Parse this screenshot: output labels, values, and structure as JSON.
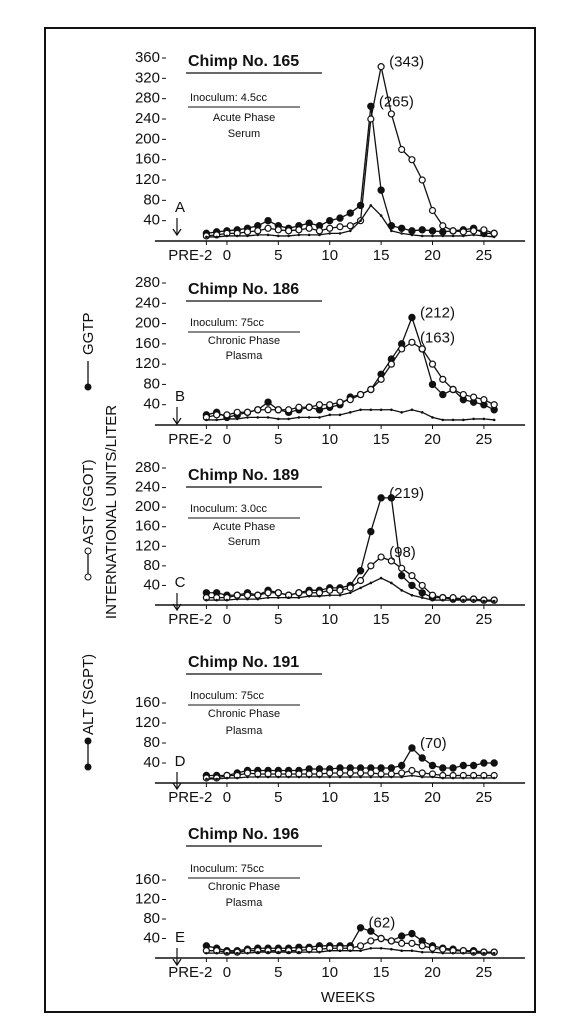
{
  "series_names": [
    "ALT (SGPT)",
    "AST (SGOT)",
    "GGTP"
  ],
  "y_label": "INTERNATIONAL UNITS/LITER",
  "x_label": "WEEKS",
  "chart_data": [
    {
      "type": "line",
      "title": "Chimp No. 165",
      "inoculum": "Inoculum:  4.5cc",
      "phase": "Acute Phase",
      "sample": "Serum",
      "panel": "A",
      "x": [
        -2,
        -1,
        0,
        1,
        2,
        3,
        4,
        5,
        6,
        7,
        8,
        9,
        10,
        11,
        12,
        13,
        14,
        15,
        16,
        17,
        18,
        19,
        20,
        21,
        22,
        23,
        24,
        25,
        26
      ],
      "series": [
        {
          "color": "#111111",
          "marker": "filled",
          "values": [
            15,
            18,
            20,
            22,
            25,
            30,
            40,
            30,
            25,
            30,
            35,
            30,
            40,
            45,
            55,
            70,
            265,
            100,
            30,
            25,
            20,
            22,
            20,
            18,
            20,
            22,
            25,
            15,
            15
          ]
        },
        {
          "color": "#111111",
          "marker": "open",
          "values": [
            10,
            12,
            15,
            15,
            18,
            20,
            25,
            22,
            20,
            22,
            25,
            20,
            25,
            28,
            30,
            40,
            240,
            343,
            250,
            180,
            160,
            120,
            60,
            30,
            20,
            18,
            20,
            22,
            15
          ]
        },
        {
          "color": "#111111",
          "marker": "none",
          "values": [
            8,
            8,
            10,
            10,
            10,
            12,
            12,
            10,
            10,
            12,
            12,
            12,
            15,
            15,
            20,
            40,
            70,
            50,
            20,
            15,
            12,
            10,
            10,
            10,
            10,
            10,
            12,
            10,
            8
          ]
        }
      ],
      "peak_labels": [
        "(265)",
        "(343)",
        null
      ],
      "xlim": [
        -7,
        29
      ],
      "ylim": [
        0,
        360
      ],
      "xticks": [
        {
          "value": -2,
          "label": "PRE-2"
        },
        0,
        5,
        10,
        15,
        20,
        25
      ],
      "yticks": [
        40,
        80,
        120,
        160,
        200,
        240,
        280,
        320,
        360
      ]
    },
    {
      "type": "line",
      "title": "Chimp No. 186",
      "inoculum": "Inoculum:  75cc",
      "phase": "Chronic Phase",
      "sample": "Plasma",
      "panel": "B",
      "x": [
        -2,
        -1,
        0,
        1,
        2,
        3,
        4,
        5,
        6,
        7,
        8,
        9,
        10,
        11,
        12,
        13,
        14,
        15,
        16,
        17,
        18,
        19,
        20,
        21,
        22,
        23,
        24,
        25,
        26
      ],
      "series": [
        {
          "color": "#111111",
          "marker": "filled",
          "values": [
            20,
            25,
            15,
            20,
            25,
            30,
            45,
            30,
            25,
            30,
            35,
            30,
            35,
            40,
            55,
            60,
            70,
            100,
            130,
            160,
            212,
            150,
            80,
            60,
            70,
            50,
            45,
            40,
            30
          ]
        },
        {
          "color": "#111111",
          "marker": "open",
          "values": [
            15,
            20,
            20,
            25,
            25,
            30,
            30,
            30,
            30,
            35,
            35,
            40,
            40,
            45,
            50,
            60,
            70,
            90,
            120,
            150,
            163,
            150,
            120,
            90,
            70,
            60,
            55,
            50,
            40
          ]
        },
        {
          "color": "#111111",
          "marker": "none",
          "values": [
            10,
            10,
            12,
            12,
            15,
            15,
            15,
            12,
            12,
            15,
            15,
            15,
            20,
            20,
            25,
            30,
            30,
            30,
            30,
            25,
            30,
            25,
            15,
            10,
            10,
            10,
            12,
            12,
            10
          ]
        }
      ],
      "peak_labels": [
        "(212)",
        "(163)",
        null
      ],
      "xlim": [
        -7,
        29
      ],
      "ylim": [
        0,
        280
      ],
      "xticks": [
        {
          "value": -2,
          "label": "PRE-2"
        },
        0,
        5,
        10,
        15,
        20,
        25
      ],
      "yticks": [
        40,
        80,
        120,
        160,
        200,
        240,
        280
      ]
    },
    {
      "type": "line",
      "title": "Chimp No. 189",
      "inoculum": "Inoculum:  3.0cc",
      "phase": "Acute Phase",
      "sample": "Serum",
      "panel": "C",
      "x": [
        -2,
        -1,
        0,
        1,
        2,
        3,
        4,
        5,
        6,
        7,
        8,
        9,
        10,
        11,
        12,
        13,
        14,
        15,
        16,
        17,
        18,
        19,
        20,
        21,
        22,
        23,
        24,
        25,
        26
      ],
      "series": [
        {
          "color": "#111111",
          "marker": "filled",
          "values": [
            25,
            25,
            20,
            20,
            25,
            20,
            30,
            25,
            20,
            25,
            30,
            30,
            35,
            35,
            40,
            70,
            150,
            219,
            219,
            60,
            40,
            25,
            15,
            15,
            12,
            12,
            12,
            10,
            10
          ]
        },
        {
          "color": "#111111",
          "marker": "open",
          "values": [
            15,
            15,
            15,
            20,
            20,
            20,
            25,
            25,
            20,
            25,
            25,
            25,
            30,
            30,
            35,
            50,
            80,
            98,
            90,
            75,
            60,
            40,
            20,
            15,
            15,
            12,
            12,
            10,
            10
          ]
        },
        {
          "color": "#111111",
          "marker": "none",
          "values": [
            10,
            10,
            10,
            12,
            12,
            12,
            15,
            15,
            15,
            15,
            18,
            18,
            20,
            20,
            25,
            35,
            45,
            55,
            45,
            30,
            20,
            15,
            10,
            10,
            10,
            10,
            10,
            8,
            8
          ]
        }
      ],
      "peak_labels": [
        "(219)",
        "(98)",
        null
      ],
      "xlim": [
        -7,
        29
      ],
      "ylim": [
        0,
        280
      ],
      "xticks": [
        {
          "value": -2,
          "label": "PRE-2"
        },
        0,
        5,
        10,
        15,
        20,
        25
      ],
      "yticks": [
        40,
        80,
        120,
        160,
        200,
        240,
        280
      ]
    },
    {
      "type": "line",
      "title": "Chimp No. 191",
      "inoculum": "Inoculum:  75cc",
      "phase": "Chronic Phase",
      "sample": "Plasma",
      "panel": "D",
      "x": [
        -2,
        -1,
        0,
        1,
        2,
        3,
        4,
        5,
        6,
        7,
        8,
        9,
        10,
        11,
        12,
        13,
        14,
        15,
        16,
        17,
        18,
        19,
        20,
        21,
        22,
        23,
        24,
        25,
        26
      ],
      "series": [
        {
          "color": "#111111",
          "marker": "filled",
          "values": [
            15,
            15,
            15,
            20,
            25,
            25,
            25,
            25,
            25,
            25,
            28,
            28,
            28,
            30,
            30,
            30,
            30,
            30,
            30,
            35,
            70,
            50,
            35,
            30,
            30,
            35,
            35,
            40,
            40
          ]
        },
        {
          "color": "#111111",
          "marker": "open",
          "values": [
            10,
            10,
            15,
            15,
            20,
            18,
            18,
            18,
            18,
            18,
            18,
            18,
            20,
            20,
            20,
            20,
            20,
            18,
            18,
            20,
            25,
            20,
            18,
            15,
            15,
            15,
            15,
            15,
            15
          ]
        },
        {
          "color": "#111111",
          "marker": "none",
          "values": [
            8,
            8,
            10,
            10,
            12,
            12,
            12,
            12,
            12,
            12,
            12,
            12,
            12,
            12,
            12,
            12,
            12,
            12,
            12,
            12,
            15,
            12,
            12,
            10,
            10,
            10,
            10,
            10,
            10
          ]
        }
      ],
      "peak_labels": [
        "(70)",
        null,
        null
      ],
      "xlim": [
        -7,
        29
      ],
      "ylim": [
        0,
        160
      ],
      "xticks": [
        {
          "value": -2,
          "label": "PRE-2"
        },
        0,
        5,
        10,
        15,
        20,
        25
      ],
      "yticks": [
        40,
        80,
        120,
        160
      ]
    },
    {
      "type": "line",
      "title": "Chimp No. 196",
      "inoculum": "Inoculum:  75cc",
      "phase": "Chronic Phase",
      "sample": "Plasma",
      "panel": "E",
      "x": [
        -2,
        -1,
        0,
        1,
        2,
        3,
        4,
        5,
        6,
        7,
        8,
        9,
        10,
        11,
        12,
        13,
        14,
        15,
        16,
        17,
        18,
        19,
        20,
        21,
        22,
        23,
        24,
        25,
        26
      ],
      "series": [
        {
          "color": "#111111",
          "marker": "filled",
          "values": [
            25,
            20,
            15,
            15,
            18,
            20,
            20,
            20,
            20,
            22,
            22,
            25,
            25,
            25,
            25,
            62,
            55,
            40,
            35,
            45,
            50,
            35,
            25,
            20,
            18,
            15,
            15,
            12,
            12
          ]
        },
        {
          "color": "#111111",
          "marker": "open",
          "values": [
            15,
            15,
            12,
            12,
            15,
            15,
            15,
            15,
            15,
            15,
            18,
            18,
            20,
            20,
            20,
            25,
            35,
            40,
            35,
            30,
            30,
            25,
            20,
            18,
            15,
            15,
            12,
            12,
            12
          ]
        },
        {
          "color": "#111111",
          "marker": "none",
          "values": [
            10,
            10,
            10,
            10,
            10,
            12,
            12,
            12,
            12,
            12,
            12,
            12,
            15,
            15,
            15,
            15,
            20,
            20,
            18,
            15,
            15,
            12,
            12,
            10,
            10,
            10,
            10,
            10,
            10
          ]
        }
      ],
      "peak_labels": [
        "(62)",
        null,
        null
      ],
      "xlim": [
        -7,
        29
      ],
      "ylim": [
        0,
        160
      ],
      "xticks": [
        {
          "value": -2,
          "label": "PRE-2"
        },
        0,
        5,
        10,
        15,
        20,
        25
      ],
      "yticks": [
        40,
        80,
        120,
        160
      ]
    }
  ]
}
